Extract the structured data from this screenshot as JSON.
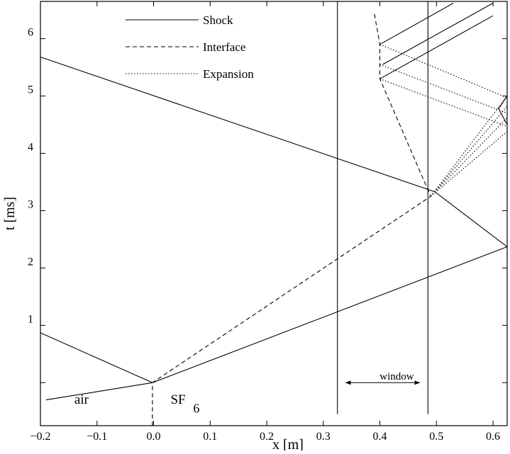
{
  "chart_data": {
    "type": "line",
    "title": "",
    "xlabel": "x [m]",
    "ylabel": "t [ms]",
    "xlim": [
      -0.2,
      0.625
    ],
    "ylim": [
      -0.75,
      6.65
    ],
    "x_ticks": [
      -0.2,
      -0.1,
      0.0,
      0.1,
      0.2,
      0.3,
      0.4,
      0.5,
      0.6
    ],
    "x_tick_labels": [
      "−0.2",
      "−0.1",
      "0.0",
      "0.1",
      "0.2",
      "0.3",
      "0.4",
      "0.5",
      "0.6"
    ],
    "y_ticks": [
      0,
      1,
      2,
      3,
      4,
      5,
      6
    ],
    "y_tick_labels": [
      "",
      "1",
      "2",
      "3",
      "4",
      "5",
      "6"
    ],
    "grid": false,
    "legend_position": "top-left",
    "legend": [
      {
        "name": "Shock",
        "style": "solid"
      },
      {
        "name": "Interface",
        "style": "dashed"
      },
      {
        "name": "Expansion",
        "style": "dotted"
      }
    ],
    "series": [
      {
        "style": "solid",
        "points": [
          [
            -0.19,
            -0.3
          ],
          [
            -0.002,
            0.0
          ],
          [
            0.625,
            2.37
          ]
        ]
      },
      {
        "style": "solid",
        "points": [
          [
            -0.2,
            0.87
          ],
          [
            -0.002,
            0.0
          ]
        ]
      },
      {
        "style": "solid",
        "points": [
          [
            -0.2,
            5.68
          ],
          [
            0.497,
            3.33
          ],
          [
            0.625,
            2.37
          ]
        ]
      },
      {
        "style": "solid",
        "points": [
          [
            0.4,
            5.9
          ],
          [
            0.53,
            6.62
          ]
        ]
      },
      {
        "style": "solid",
        "points": [
          [
            0.405,
            5.55
          ],
          [
            0.6,
            6.62
          ]
        ]
      },
      {
        "style": "solid",
        "points": [
          [
            0.4,
            5.3
          ],
          [
            0.6,
            6.4
          ]
        ]
      },
      {
        "style": "dashed",
        "points": [
          [
            -0.002,
            -0.75
          ],
          [
            -0.002,
            0.0
          ],
          [
            0.49,
            3.25
          ],
          [
            0.4,
            5.3
          ],
          [
            0.4,
            5.9
          ],
          [
            0.39,
            6.45
          ]
        ]
      },
      {
        "style": "dotted",
        "points": [
          [
            0.49,
            3.25
          ],
          [
            0.625,
            5.0
          ]
        ]
      },
      {
        "style": "dotted",
        "points": [
          [
            0.49,
            3.25
          ],
          [
            0.625,
            4.82
          ]
        ]
      },
      {
        "style": "dotted",
        "points": [
          [
            0.49,
            3.25
          ],
          [
            0.625,
            4.62
          ]
        ]
      },
      {
        "style": "dotted",
        "points": [
          [
            0.49,
            3.25
          ],
          [
            0.625,
            4.38
          ]
        ]
      },
      {
        "style": "dotted",
        "points": [
          [
            0.4,
            5.9
          ],
          [
            0.625,
            4.97
          ]
        ]
      },
      {
        "style": "dotted",
        "points": [
          [
            0.4,
            5.55
          ],
          [
            0.625,
            4.7
          ]
        ]
      },
      {
        "style": "dotted",
        "points": [
          [
            0.4,
            5.3
          ],
          [
            0.625,
            4.47
          ]
        ]
      },
      {
        "style": "solid",
        "points": [
          [
            0.625,
            5.0
          ],
          [
            0.61,
            4.78
          ],
          [
            0.625,
            4.5
          ]
        ]
      },
      {
        "style": "solid",
        "points": [
          [
            0.325,
            -0.55
          ],
          [
            0.325,
            6.65
          ]
        ]
      },
      {
        "style": "solid",
        "points": [
          [
            0.485,
            -0.55
          ],
          [
            0.485,
            6.65
          ]
        ]
      }
    ],
    "annotations": [
      {
        "text": "air",
        "x": -0.14,
        "y": -0.37
      },
      {
        "text": "SF",
        "x": 0.03,
        "y": -0.37
      },
      {
        "text": "6",
        "x": 0.07,
        "y": -0.52
      },
      {
        "text": "window",
        "x": 0.43,
        "y": 0.05
      }
    ],
    "window_arrow": {
      "from": 0.34,
      "to": 0.47,
      "y": 0.0
    }
  }
}
